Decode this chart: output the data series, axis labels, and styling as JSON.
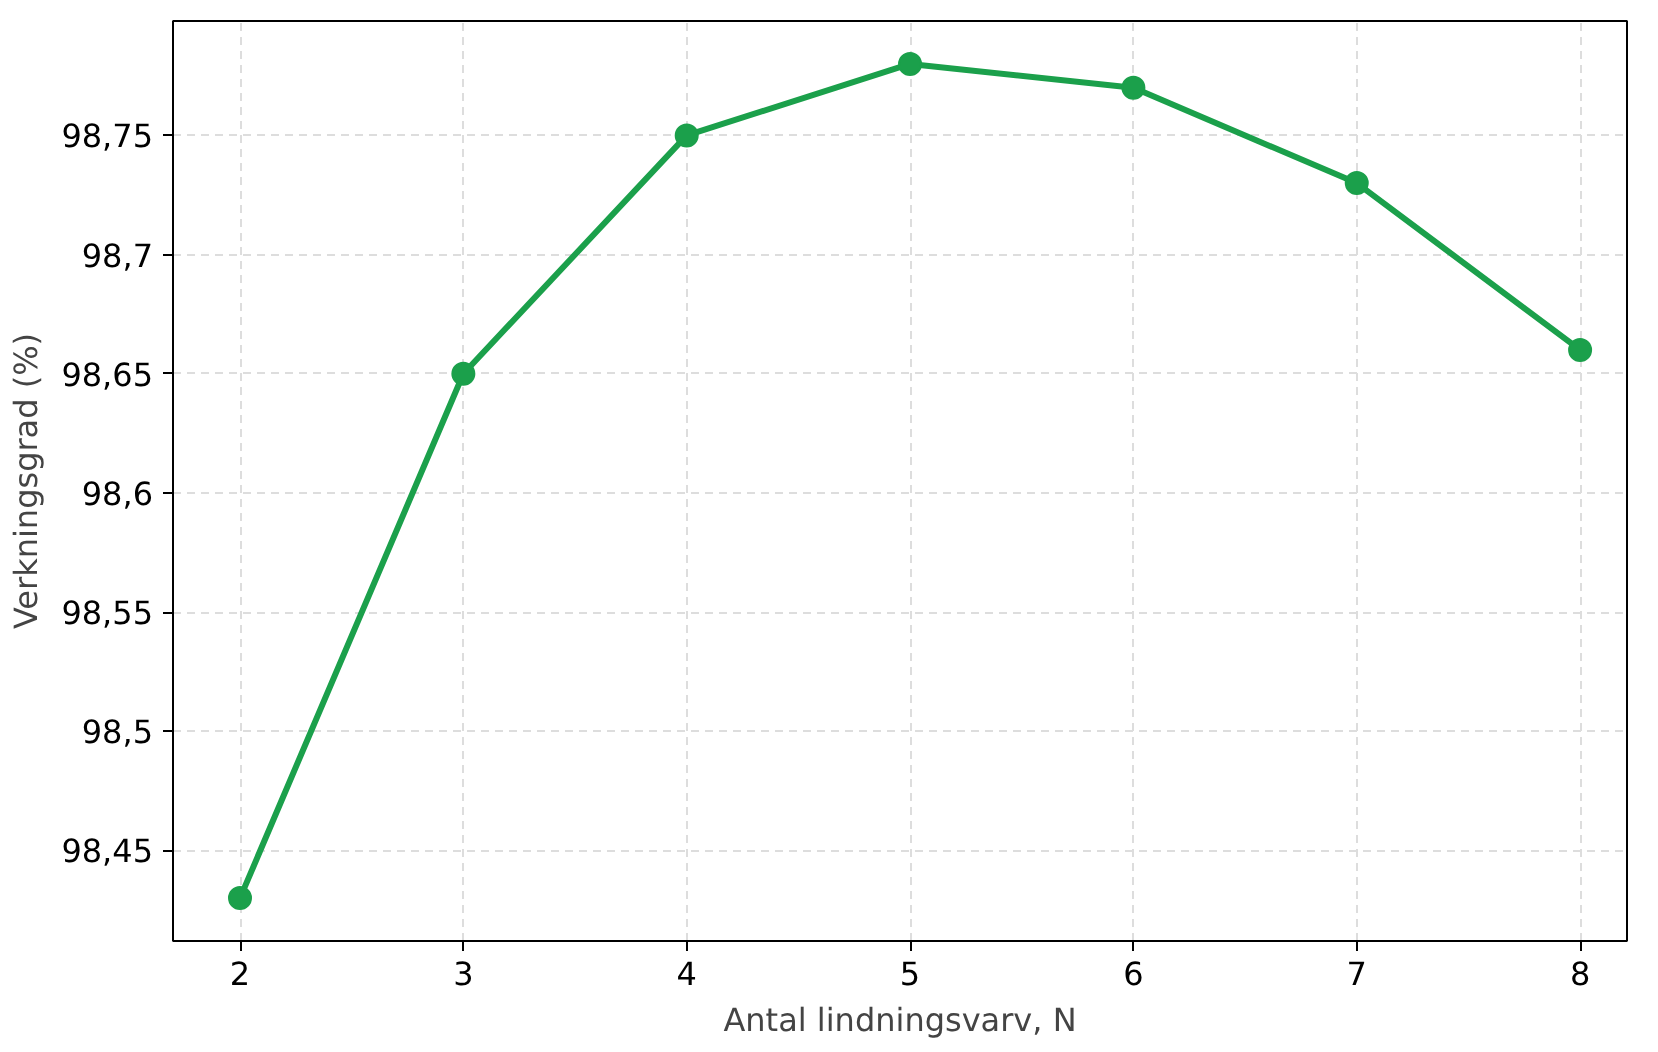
{
  "chart_data": {
    "type": "line",
    "xlabel": "Antal lindningsvarv, N",
    "ylabel": "Verkningsgrad (%)",
    "x": [
      2,
      3,
      4,
      5,
      6,
      7,
      8
    ],
    "series": [
      {
        "color": "#1ba04b",
        "values": [
          98.43,
          98.65,
          98.75,
          98.78,
          98.77,
          98.73,
          98.66
        ]
      }
    ],
    "xlim": [
      1.7,
      8.21
    ],
    "ylim": [
      98.412,
      98.798
    ],
    "xticks": [
      2,
      3,
      4,
      5,
      6,
      7,
      8
    ],
    "yticks": [
      {
        "value": 98.45,
        "label": "98,45"
      },
      {
        "value": 98.5,
        "label": "98,5"
      },
      {
        "value": 98.55,
        "label": "98,55"
      },
      {
        "value": 98.6,
        "label": "98,6"
      },
      {
        "value": 98.65,
        "label": "98,65"
      },
      {
        "value": 98.7,
        "label": "98,7"
      },
      {
        "value": 98.75,
        "label": "98,75"
      }
    ],
    "grid": true,
    "marker": "circle",
    "line_style": "solid"
  }
}
